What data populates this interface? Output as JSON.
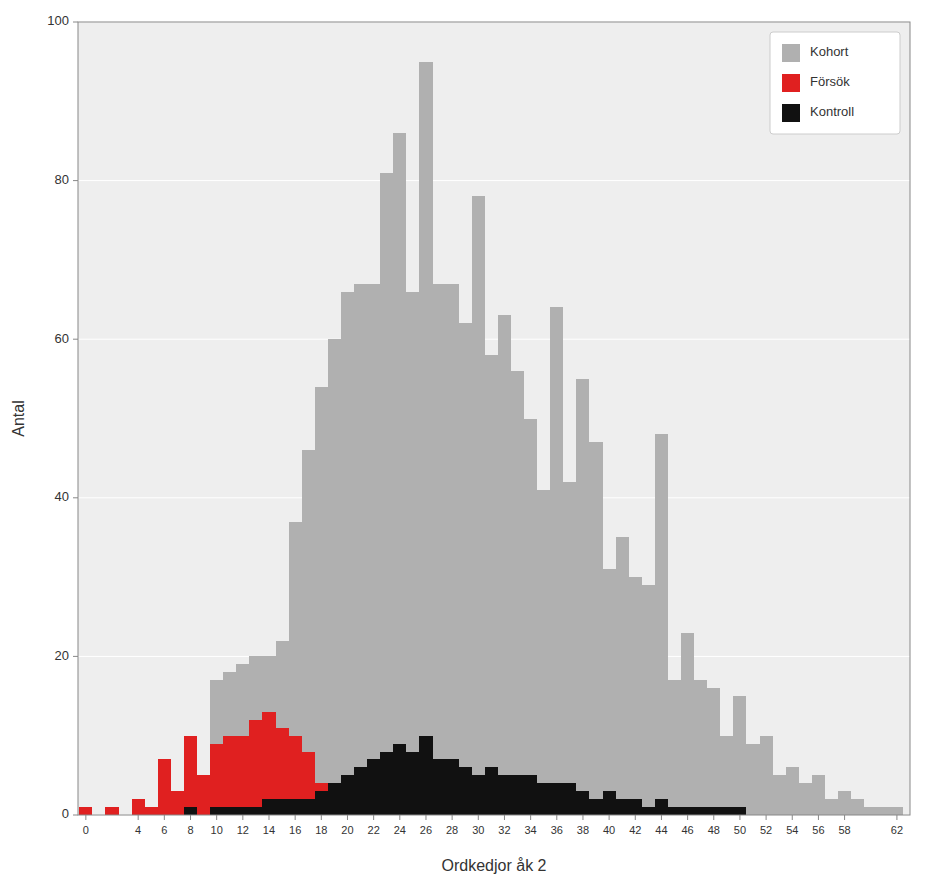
{
  "chart_data": {
    "type": "bar",
    "xlabel": "Ordkedjor åk 2",
    "ylabel": "Antal",
    "x": [
      0,
      1,
      2,
      3,
      4,
      5,
      6,
      7,
      8,
      9,
      10,
      11,
      12,
      13,
      14,
      15,
      16,
      17,
      18,
      19,
      20,
      21,
      22,
      23,
      24,
      25,
      26,
      27,
      28,
      29,
      30,
      31,
      32,
      33,
      34,
      35,
      36,
      37,
      38,
      39,
      40,
      41,
      42,
      43,
      44,
      45,
      46,
      47,
      48,
      49,
      50,
      51,
      52,
      53,
      54,
      55,
      56,
      57,
      58,
      59,
      60,
      61,
      62
    ],
    "series": [
      {
        "name": "Kohort",
        "color": "#b0b0b0",
        "values": [
          1,
          0,
          1,
          0,
          2,
          1,
          3,
          3,
          7,
          5,
          17,
          18,
          19,
          20,
          20,
          22,
          37,
          46,
          54,
          60,
          66,
          67,
          67,
          81,
          86,
          66,
          95,
          67,
          67,
          62,
          78,
          58,
          63,
          56,
          50,
          41,
          64,
          42,
          55,
          47,
          31,
          35,
          30,
          29,
          48,
          17,
          23,
          17,
          16,
          10,
          15,
          9,
          10,
          5,
          6,
          4,
          5,
          2,
          3,
          2,
          1,
          1,
          1
        ]
      },
      {
        "name": "Försök",
        "color": "#e02020",
        "values": [
          1,
          0,
          1,
          0,
          2,
          1,
          7,
          3,
          10,
          5,
          9,
          10,
          10,
          12,
          13,
          11,
          10,
          8,
          4,
          4,
          4,
          3,
          2,
          1,
          1,
          0,
          0,
          0,
          0,
          0,
          0,
          0,
          0,
          0,
          0,
          0,
          0,
          0,
          0,
          0,
          0,
          0,
          0,
          0,
          0,
          0,
          0,
          0,
          0,
          0,
          0,
          0,
          0,
          0,
          0,
          0,
          0,
          0,
          0,
          0,
          0,
          0,
          0
        ]
      },
      {
        "name": "Kontroll",
        "color": "#111111",
        "values": [
          0,
          0,
          0,
          0,
          0,
          0,
          0,
          0,
          1,
          0,
          1,
          1,
          1,
          1,
          2,
          2,
          2,
          2,
          3,
          4,
          5,
          6,
          7,
          8,
          9,
          8,
          10,
          7,
          7,
          6,
          5,
          6,
          5,
          5,
          5,
          4,
          4,
          4,
          3,
          2,
          3,
          2,
          2,
          1,
          2,
          1,
          1,
          1,
          1,
          1,
          1,
          0,
          0,
          0,
          0,
          0,
          0,
          0,
          0,
          0,
          0,
          0,
          0
        ]
      }
    ],
    "xlim": [
      -0.6,
      63.0
    ],
    "xticks": [
      0,
      4,
      6,
      8,
      10,
      12,
      14,
      16,
      18,
      20,
      22,
      24,
      26,
      28,
      30,
      32,
      34,
      36,
      38,
      40,
      42,
      44,
      46,
      48,
      50,
      52,
      54,
      56,
      58,
      62
    ],
    "ylim": [
      0,
      100
    ],
    "yticks": [
      0,
      20,
      40,
      60,
      80,
      100
    ],
    "stacked": false,
    "grid": true,
    "legend": "upper right"
  }
}
